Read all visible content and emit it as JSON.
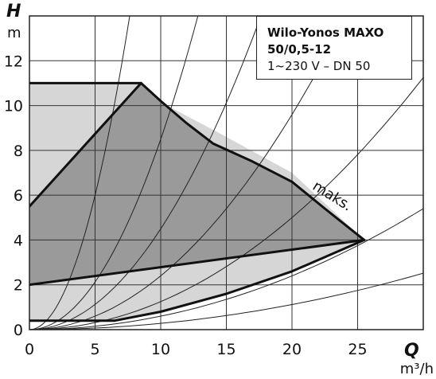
{
  "chart_data": {
    "type": "line",
    "x_symbol": "Q",
    "x_unit": "m³/h",
    "y_symbol": "H",
    "y_unit": "m",
    "xlim": [
      0,
      30
    ],
    "ylim": [
      0,
      14
    ],
    "x_ticks": [
      0,
      5,
      10,
      15,
      20,
      25
    ],
    "y_ticks": [
      0,
      2,
      4,
      6,
      8,
      10,
      12
    ],
    "grid": true,
    "legend": {
      "title": "Wilo-Yonos MAXO",
      "model": "50/0,5-12",
      "spec": "1~230 V – DN 50",
      "placement": "top-right"
    },
    "max_label": "maks.",
    "max_label_at": [
      21.5,
      6.3
    ],
    "regions": [
      {
        "id": "outer",
        "fill": "#d6d6d6",
        "points": [
          [
            0,
            0.4
          ],
          [
            6.5,
            0.4
          ],
          [
            10,
            0.8
          ],
          [
            15,
            1.6
          ],
          [
            20,
            2.6
          ],
          [
            25.5,
            4
          ],
          [
            20,
            7
          ],
          [
            15,
            8.6
          ],
          [
            10.5,
            10
          ],
          [
            8.5,
            11
          ],
          [
            0,
            11
          ]
        ]
      },
      {
        "id": "inner",
        "fill": "#9a9a9a",
        "points": [
          [
            0,
            2
          ],
          [
            25.5,
            4
          ],
          [
            22.5,
            5.4
          ],
          [
            20,
            6.6
          ],
          [
            17,
            7.5
          ],
          [
            14,
            8.3
          ],
          [
            12,
            9.2
          ],
          [
            10,
            10.2
          ],
          [
            8.5,
            11
          ],
          [
            0,
            5.5
          ]
        ]
      }
    ],
    "series": [
      {
        "id": "max-curve",
        "points": [
          [
            0,
            11
          ],
          [
            8.5,
            11
          ],
          [
            10,
            10.2
          ],
          [
            12,
            9.2
          ],
          [
            14,
            8.3
          ],
          [
            17,
            7.5
          ],
          [
            20,
            6.6
          ],
          [
            22.5,
            5.4
          ],
          [
            25.5,
            4
          ]
        ]
      },
      {
        "id": "control-line",
        "points": [
          [
            0,
            5.5
          ],
          [
            8.5,
            11
          ]
        ]
      },
      {
        "id": "min-upper",
        "points": [
          [
            0,
            2
          ],
          [
            25.5,
            4
          ]
        ]
      },
      {
        "id": "min-lower",
        "points": [
          [
            0,
            0.4
          ],
          [
            6.5,
            0.4
          ],
          [
            10,
            0.8
          ],
          [
            15,
            1.6
          ],
          [
            20,
            2.6
          ],
          [
            25.5,
            4
          ]
        ]
      }
    ],
    "system_curves_k": [
      0.24,
      0.085,
      0.045,
      0.024,
      0.0125,
      0.006,
      0.0028
    ]
  }
}
